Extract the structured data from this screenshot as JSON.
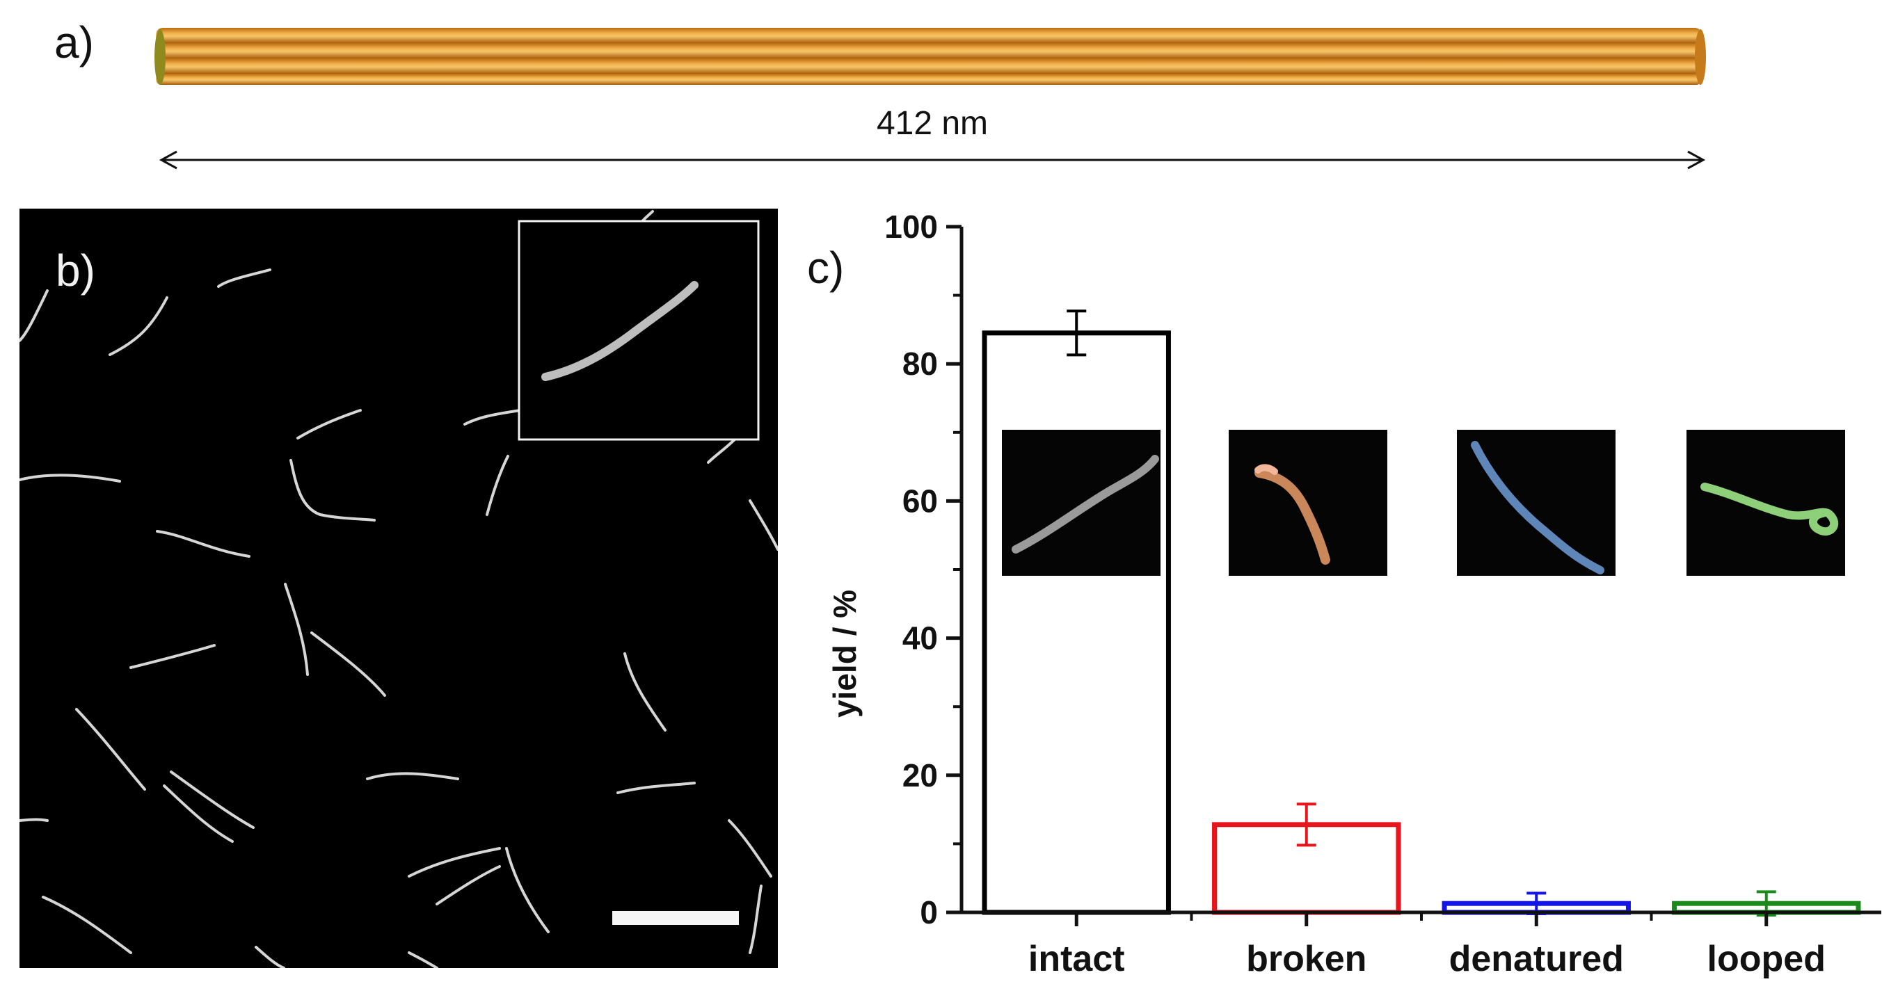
{
  "panels": {
    "a": "a)",
    "b": "b)",
    "c": "c)"
  },
  "dimension": {
    "label": "412 nm"
  },
  "colors": {
    "rod": "#e89a2c",
    "rod_dark": "#b86a10",
    "rod_end": "#8f8a1e",
    "intact": "#000000",
    "broken": "#e8141c",
    "denatured": "#1414e6",
    "looped": "#1a8a1a"
  },
  "chart_data": {
    "type": "bar",
    "title": "",
    "xlabel": "",
    "ylabel": "yield / %",
    "ylim": [
      0,
      100
    ],
    "yticks": [
      0,
      20,
      40,
      60,
      80,
      100
    ],
    "categories": [
      "intact",
      "broken",
      "denatured",
      "looped"
    ],
    "values": [
      84.5,
      12.8,
      1.3,
      1.3
    ],
    "errors": [
      3.2,
      3.0,
      1.5,
      1.7
    ],
    "bar_style": "outlined",
    "grid": false,
    "legend": "none"
  }
}
